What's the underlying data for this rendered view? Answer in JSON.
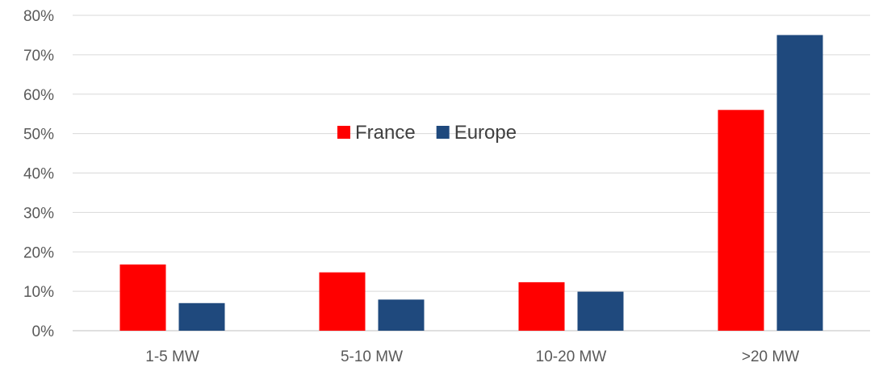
{
  "chart_data": {
    "type": "bar",
    "title": "",
    "xlabel": "",
    "ylabel": "",
    "categories": [
      "1-5 MW",
      "5-10 MW",
      "10-20 MW",
      ">20 MW"
    ],
    "series": [
      {
        "name": "France",
        "color": "#ff0000",
        "values": [
          0.168,
          0.148,
          0.123,
          0.56
        ]
      },
      {
        "name": "Europe",
        "color": "#1f497d",
        "values": [
          0.07,
          0.079,
          0.099,
          0.75
        ]
      }
    ],
    "ylim": [
      0,
      0.8
    ],
    "y_ticks": [
      0,
      0.1,
      0.2,
      0.3,
      0.4,
      0.5,
      0.6,
      0.7,
      0.8
    ],
    "y_tick_labels": [
      "0%",
      "10%",
      "20%",
      "30%",
      "40%",
      "50%",
      "60%",
      "70%",
      "80%"
    ],
    "grid": true,
    "legend_position": "top-center"
  }
}
